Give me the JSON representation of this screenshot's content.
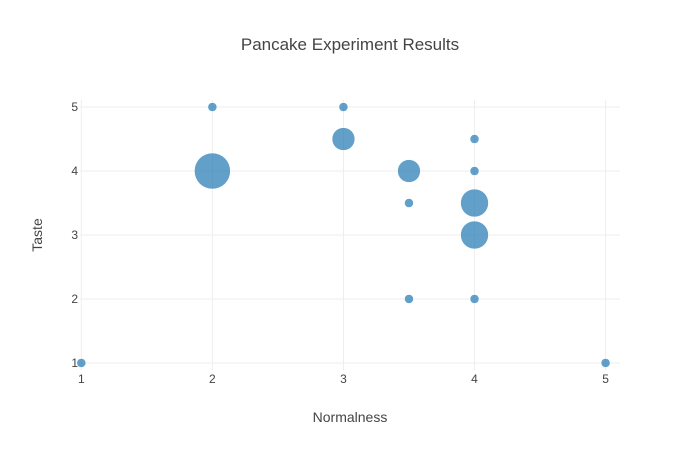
{
  "chart_data": {
    "type": "scatter",
    "title": "Pancake Experiment Results",
    "xlabel": "Normalness",
    "ylabel": "Taste",
    "xlim": [
      0.99,
      5.11
    ],
    "ylim": [
      0.89,
      5.11
    ],
    "xticks": [
      1,
      2,
      3,
      4,
      5
    ],
    "yticks": [
      1,
      2,
      3,
      4,
      5
    ],
    "grid": true,
    "legend": "none",
    "marker_color": "#1f77b4",
    "marker_opacity": 0.7,
    "points": [
      {
        "x": 1,
        "y": 1,
        "size": 1
      },
      {
        "x": 2,
        "y": 5,
        "size": 1
      },
      {
        "x": 2,
        "y": 4,
        "size": 5
      },
      {
        "x": 3,
        "y": 5,
        "size": 1
      },
      {
        "x": 3,
        "y": 4.5,
        "size": 2
      },
      {
        "x": 3.5,
        "y": 4,
        "size": 2
      },
      {
        "x": 3.5,
        "y": 3.5,
        "size": 1
      },
      {
        "x": 3.5,
        "y": 2,
        "size": 1
      },
      {
        "x": 4,
        "y": 4.5,
        "size": 1
      },
      {
        "x": 4,
        "y": 4,
        "size": 1
      },
      {
        "x": 4,
        "y": 3.5,
        "size": 3
      },
      {
        "x": 4,
        "y": 3,
        "size": 3
      },
      {
        "x": 4,
        "y": 2,
        "size": 1
      },
      {
        "x": 5,
        "y": 1,
        "size": 1
      }
    ]
  }
}
